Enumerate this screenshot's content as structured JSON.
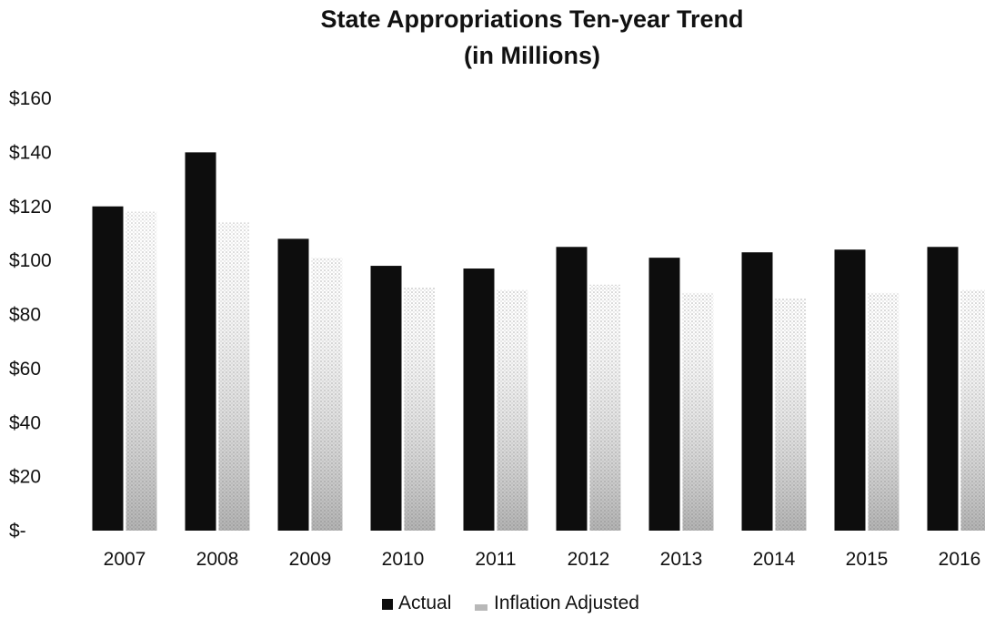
{
  "chart_data": {
    "type": "bar",
    "title": "State Appropriations Ten-year Trend",
    "subtitle": "(in Millions)",
    "xlabel": "",
    "ylabel": "",
    "categories": [
      "2007",
      "2008",
      "2009",
      "2010",
      "2011",
      "2012",
      "2013",
      "2014",
      "2015",
      "2016"
    ],
    "y_tick_values": [
      0,
      20,
      40,
      60,
      80,
      100,
      120,
      140,
      160
    ],
    "y_tick_labels": [
      "$-",
      "$20",
      "$40",
      "$60",
      "$80",
      "$100",
      "$120",
      "$140",
      "$160"
    ],
    "ylim": [
      0,
      160
    ],
    "grid": false,
    "legend_position": "bottom",
    "series": [
      {
        "name": "Actual",
        "color": "#0d0d0d",
        "pattern": "solid",
        "values": [
          120,
          140,
          108,
          98,
          97,
          105,
          101,
          103,
          104,
          105
        ]
      },
      {
        "name": "Inflation Adjusted",
        "color": "#7a7a7a",
        "pattern": "stippled",
        "values": [
          118,
          114,
          101,
          90,
          89,
          91,
          88,
          86,
          88,
          89
        ]
      }
    ]
  }
}
